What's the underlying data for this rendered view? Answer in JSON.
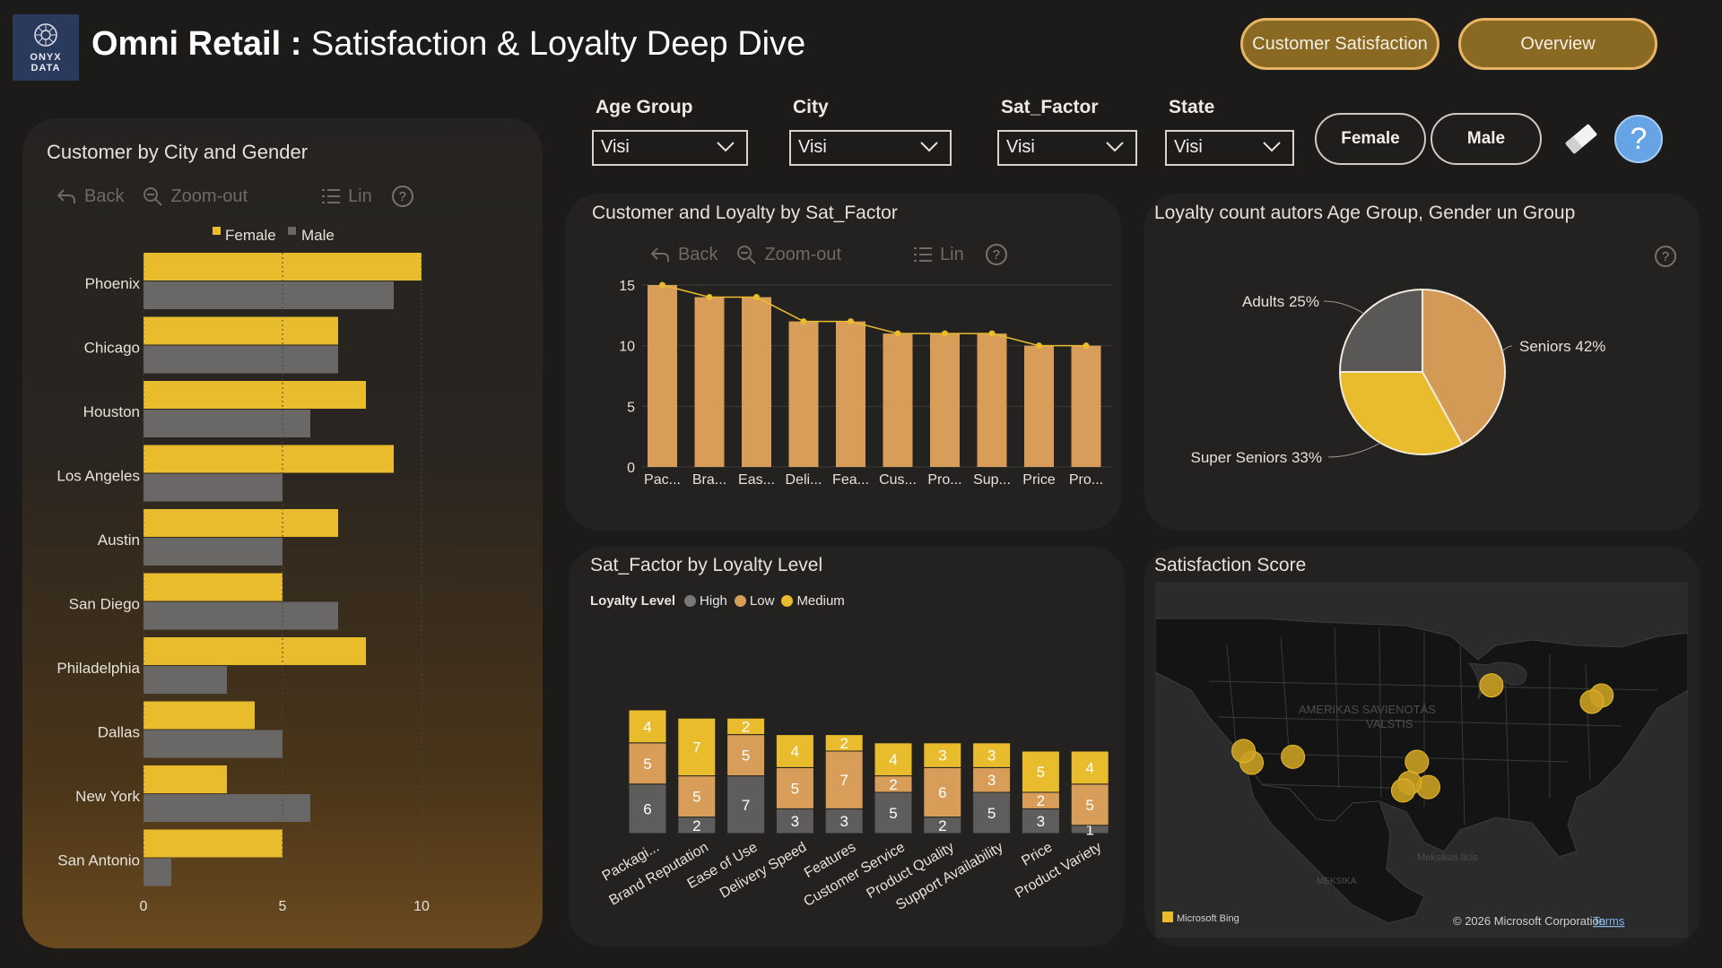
{
  "header": {
    "logo_text_line1": "ONYX",
    "logo_text_line2": "DATA",
    "title_bold": "Omni Retail :",
    "title_rest": " Satisfaction & Loyalty Deep Dive",
    "nav_customer_satisfaction": "Customer Satisfaction",
    "nav_overview": "Overview"
  },
  "filters": {
    "age_group": {
      "label": "Age Group",
      "value": "Visi"
    },
    "city": {
      "label": "City",
      "value": "Visi"
    },
    "sat_factor": {
      "label": "Sat_Factor",
      "value": "Visi"
    },
    "state": {
      "label": "State",
      "value": "Visi"
    },
    "female_button": "Female",
    "male_button": "Male"
  },
  "toolbar": {
    "back": "Back",
    "zoom_out": "Zoom-out",
    "lin": "Lin",
    "help": "?"
  },
  "colors": {
    "female": "#e8bc2c",
    "male": "#6a6866",
    "low": "#d89d58",
    "high": "#5f5d5b",
    "medium": "#e8bc2c",
    "pie_seniors": "#d39a55",
    "pie_super": "#e8bc2c",
    "pie_adults": "#5a5856"
  },
  "panels": {
    "city_gender_title": "Customer by City and Gender",
    "sat_factor_title": "Customer and Loyalty by Sat_Factor",
    "loyalty_age_title": "Loyalty count autors Age Group, Gender un Group",
    "loyalty_level_title": "Sat_Factor by Loyalty Level",
    "satisfaction_score_title": "Satisfaction Score"
  },
  "map": {
    "country_label_1": "AMERIKAS SAVIENOTĀS",
    "country_label_2": "VALSTIS",
    "mexico_label": "MEKSIKA",
    "gulf_label": "Meksikas līcis",
    "bing_label": "Microsoft Bing",
    "copyright": "© 2026 Microsoft Corporation",
    "terms": "Terms",
    "points": [
      {
        "city": "San Diego",
        "lon": -117.2,
        "lat": 32.7
      },
      {
        "city": "Los Angeles",
        "lon": -118.2,
        "lat": 34.1
      },
      {
        "city": "Phoenix",
        "lon": -112.1,
        "lat": 33.4
      },
      {
        "city": "Dallas",
        "lon": -96.8,
        "lat": 32.8
      },
      {
        "city": "Houston",
        "lon": -95.4,
        "lat": 29.8
      },
      {
        "city": "Austin",
        "lon": -97.7,
        "lat": 30.3
      },
      {
        "city": "San Antonio",
        "lon": -98.5,
        "lat": 29.4
      },
      {
        "city": "Chicago",
        "lon": -87.6,
        "lat": 41.9
      },
      {
        "city": "New York",
        "lon": -74.0,
        "lat": 40.7
      },
      {
        "city": "Philadelphia",
        "lon": -75.2,
        "lat": 39.95
      }
    ]
  },
  "chart_data": [
    {
      "id": "city_gender",
      "type": "bar",
      "orientation": "horizontal",
      "title": "Customer by City and Gender",
      "categories": [
        "Phoenix",
        "Chicago",
        "Houston",
        "Los Angeles",
        "Austin",
        "San Diego",
        "Philadelphia",
        "Dallas",
        "New York",
        "San Antonio"
      ],
      "series": [
        {
          "name": "Female",
          "values": [
            10,
            7,
            8,
            9,
            7,
            5,
            8,
            4,
            3,
            5
          ]
        },
        {
          "name": "Male",
          "values": [
            9,
            7,
            6,
            5,
            5,
            7,
            3,
            5,
            6,
            1
          ]
        }
      ],
      "xticks": [
        "0",
        "5",
        "10"
      ],
      "xlim": [
        0,
        10
      ],
      "legend": "top"
    },
    {
      "id": "sat_factor",
      "type": "bar",
      "title": "Customer and Loyalty by Sat_Factor",
      "categories": [
        "Pac...",
        "Bra...",
        "Eas...",
        "Deli...",
        "Fea...",
        "Cus...",
        "Pro...",
        "Sup...",
        "Price",
        "Pro..."
      ],
      "values": [
        15,
        14,
        14,
        12,
        12,
        11,
        11,
        11,
        10,
        10
      ],
      "line_values": [
        15,
        14,
        14,
        12,
        12,
        11,
        11,
        11,
        10,
        10
      ],
      "yticks": [
        "0",
        "5",
        "10",
        "15"
      ],
      "ylim": [
        0,
        15
      ],
      "grid": true
    },
    {
      "id": "age_group_pie",
      "type": "pie",
      "title": "Loyalty count autors Age Group, Gender un Group",
      "slices": [
        {
          "label": "Seniors 42%",
          "value": 42
        },
        {
          "label": "Super Seniors 33%",
          "value": 33
        },
        {
          "label": "Adults 25%",
          "value": 25
        }
      ]
    },
    {
      "id": "loyalty_level",
      "type": "bar",
      "stacked": true,
      "title": "Sat_Factor by Loyalty Level",
      "legend_title": "Loyalty Level",
      "categories": [
        "Packagi...",
        "Brand Reputation",
        "Ease of Use",
        "Delivery Speed",
        "Features",
        "Customer Service",
        "Product Quality",
        "Support Availability",
        "Price",
        "Product Variety"
      ],
      "series": [
        {
          "name": "High",
          "values": [
            6,
            2,
            7,
            3,
            3,
            5,
            2,
            5,
            3,
            1
          ]
        },
        {
          "name": "Low",
          "values": [
            5,
            5,
            5,
            5,
            7,
            2,
            6,
            3,
            2,
            5
          ]
        },
        {
          "name": "Medium",
          "values": [
            4,
            7,
            2,
            4,
            2,
            4,
            3,
            3,
            5,
            4
          ]
        }
      ],
      "legend": "top-left"
    }
  ]
}
